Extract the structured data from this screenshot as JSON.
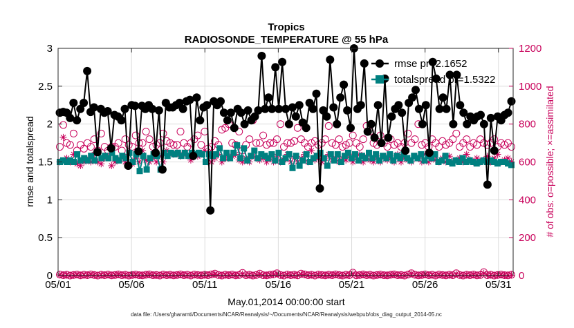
{
  "chart_data": {
    "type": "line",
    "title": "Tropics",
    "subtitle": "RADIOSONDE_TEMPERATURE @ 55 hPa",
    "xlabel": "May.01,2014 00:00:00 start",
    "ylabel_left": "rmse and totalspread",
    "ylabel_right": "# of obs: o=possible; ×=assimilated",
    "footnote": "data file: /Users/gharamti/Documents/NCAR/Reanalysis/~/Documents/NCAR/Reanalysis/webpub/obs_diag_output_2014-05.nc",
    "x_range_days": [
      1,
      32
    ],
    "x_ticks": [
      1,
      6,
      11,
      16,
      21,
      26,
      31
    ],
    "x_tick_labels": [
      "05/01",
      "05/06",
      "05/11",
      "05/16",
      "05/21",
      "05/26",
      "05/31"
    ],
    "ylim_left": [
      0,
      3
    ],
    "y_ticks_left": [
      0,
      0.5,
      1,
      1.5,
      2,
      2.5,
      3
    ],
    "y_tick_labels_left": [
      "0",
      "0.5",
      "1",
      "1.5",
      "2",
      "2.5",
      "3"
    ],
    "ylim_right": [
      0,
      1200
    ],
    "y_ticks_right": [
      0,
      200,
      400,
      600,
      800,
      1000,
      1200
    ],
    "y_tick_labels_right": [
      "0",
      "200",
      "400",
      "600",
      "800",
      "1000",
      "1200"
    ],
    "legend": [
      "rmse pr=2.1652",
      "totalspread pr=1.5322"
    ],
    "legend_position": "top-right",
    "colors": {
      "rmse": "#000000",
      "totalspread": "#008080",
      "obs": "#c8005a"
    },
    "series": [
      {
        "name": "rmse",
        "axis": "left",
        "values": [
          2.15,
          2.16,
          2.15,
          2.08,
          2.28,
          2.05,
          2.2,
          2.28,
          2.7,
          2.16,
          2.22,
          1.63,
          2.2,
          2.15,
          2.17,
          1.68,
          2.12,
          2.1,
          2.05,
          2.2,
          1.45,
          2.25,
          2.24,
          1.64,
          2.24,
          2.2,
          2.25,
          2.2,
          1.62,
          2.18,
          1.4,
          2.28,
          2.22,
          2.22,
          2.25,
          2.28,
          2.2,
          2.3,
          2.32,
          1.58,
          2.35,
          2.05,
          2.22,
          2.25,
          0.86,
          2.3,
          2.25,
          2.3,
          2.15,
          2.05,
          2.15,
          1.95,
          2.2,
          2.15,
          2.0,
          2.18,
          2.05,
          2.1,
          2.18,
          2.9,
          2.2,
          2.35,
          2.2,
          2.75,
          2.2,
          2.82,
          2.2,
          2.0,
          2.22,
          2.1,
          2.25,
          2.02,
          1.95,
          2.28,
          2.2,
          2.4,
          1.15,
          2.18,
          2.1,
          2.85,
          2.22,
          2.0,
          2.35,
          2.52,
          2.18,
          1.95,
          3.0,
          2.2,
          2.25,
          2.8,
          1.9,
          2.0,
          1.82,
          2.25,
          1.75,
          2.6,
          1.82,
          2.1,
          2.2,
          2.25,
          2.15,
          1.65,
          2.28,
          2.35,
          2.45,
          2.2,
          2.0,
          2.25,
          1.62,
          2.82,
          2.6,
          2.2,
          2.35,
          2.2,
          2.65,
          2.0,
          2.65,
          2.25,
          2.15,
          2.0,
          2.1,
          2.05,
          2.1,
          2.12,
          2.0,
          1.2,
          2.08,
          1.65,
          2.1,
          2.05,
          2.12,
          2.15,
          2.3
        ]
      },
      {
        "name": "totalspread",
        "axis": "left",
        "values": [
          1.5,
          1.52,
          1.5,
          1.52,
          1.5,
          1.6,
          1.52,
          1.55,
          1.52,
          1.58,
          1.52,
          1.62,
          1.55,
          1.58,
          1.55,
          1.62,
          1.55,
          1.52,
          1.58,
          1.55,
          1.62,
          1.5,
          1.6,
          1.38,
          1.58,
          1.4,
          1.55,
          1.6,
          1.58,
          1.4,
          1.62,
          1.58,
          1.62,
          1.6,
          1.62,
          1.58,
          1.62,
          1.58,
          1.62,
          1.6,
          1.62,
          1.6,
          1.5,
          1.6,
          1.58,
          1.6,
          1.68,
          1.55,
          1.62,
          1.55,
          1.62,
          1.72,
          1.55,
          1.68,
          1.52,
          1.58,
          1.65,
          1.55,
          1.6,
          1.58,
          1.55,
          1.6,
          1.52,
          1.62,
          1.5,
          1.55,
          1.6,
          1.42,
          1.58,
          1.45,
          1.52,
          1.6,
          1.5,
          1.55,
          1.58,
          1.62,
          1.55,
          1.45,
          1.6,
          1.52,
          1.6,
          1.5,
          1.58,
          1.62,
          1.55,
          1.6,
          1.52,
          1.58,
          1.55,
          1.62,
          1.55,
          1.6,
          1.52,
          1.58,
          1.55,
          1.6,
          1.52,
          1.58,
          1.55,
          1.6,
          1.55,
          1.52,
          1.58,
          1.55,
          1.6,
          1.52,
          1.58,
          1.55,
          1.6,
          1.5,
          1.52,
          1.58,
          1.5,
          1.48,
          1.52,
          1.5,
          1.55,
          1.5,
          1.52,
          1.5,
          1.48,
          1.5,
          1.52,
          1.5,
          1.52,
          1.5,
          1.48,
          1.5,
          1.5,
          1.48,
          1.46
        ]
      },
      {
        "name": "obs_possible",
        "axis": "right",
        "values": [
          680,
          795,
          700,
          690,
          750,
          660,
          690,
          670,
          700,
          680,
          720,
          660,
          750,
          680,
          660,
          680,
          680,
          700,
          660,
          720,
          690,
          680,
          740,
          700,
          700,
          760,
          720,
          680,
          690,
          700,
          750,
          710,
          700,
          690,
          690,
          760,
          700,
          680,
          700,
          720,
          740,
          690,
          760,
          670,
          680,
          710,
          690,
          770,
          780,
          800,
          700,
          690,
          760,
          660,
          690,
          720,
          820,
          700,
          700,
          740,
          690,
          700,
          700,
          720,
          800,
          680,
          700,
          700,
          710,
          780,
          720,
          700,
          680,
          700,
          710,
          690,
          700,
          720,
          790,
          700,
          690,
          720,
          680,
          690,
          700,
          740,
          700,
          680,
          720,
          790,
          760,
          700,
          690,
          740,
          700,
          680,
          720,
          690,
          700,
          680,
          700,
          750,
          700,
          720,
          800,
          690,
          700,
          680,
          720,
          700,
          680,
          710,
          690,
          700,
          720,
          750,
          680,
          700,
          720,
          680,
          700,
          690,
          720,
          700,
          690,
          700,
          720,
          680,
          700,
          690,
          700,
          680
        ]
      },
      {
        "name": "obs_assimilated",
        "axis": "right",
        "values": [
          600,
          730,
          620,
          600,
          640,
          590,
          580,
          600,
          610,
          600,
          640,
          600,
          590,
          620,
          630,
          580,
          600,
          610,
          620,
          600,
          640,
          590,
          620,
          600,
          660,
          610,
          600,
          620,
          600,
          630,
          600,
          660,
          640,
          640,
          650,
          630,
          640,
          640,
          610,
          640,
          630,
          640,
          660,
          600,
          600,
          620,
          640,
          600,
          620,
          620,
          630,
          640,
          610,
          600,
          620,
          600,
          630,
          620,
          610,
          620,
          600,
          620,
          600,
          630,
          600,
          610,
          640,
          600,
          620,
          600,
          620,
          640,
          600,
          660,
          610,
          620,
          600,
          620,
          640,
          610,
          620,
          600,
          620,
          610,
          630,
          600,
          620,
          640,
          600,
          630,
          610,
          600,
          620,
          600,
          630,
          610,
          620,
          600,
          640,
          600,
          620,
          610,
          600,
          630,
          620,
          600,
          640,
          600,
          620,
          610,
          600,
          620,
          600,
          630,
          600,
          610,
          620,
          600,
          640,
          610,
          600,
          620,
          600,
          610,
          630,
          600,
          620,
          640,
          600,
          610,
          620,
          600
        ]
      },
      {
        "name": "obs_zero_possible",
        "axis": "right",
        "values": [
          5,
          2,
          4,
          0,
          3,
          5,
          1,
          4,
          2,
          6,
          3,
          0,
          4,
          2,
          5,
          1,
          3,
          6,
          2,
          4,
          0,
          3,
          5,
          2,
          1,
          4,
          6,
          2,
          3,
          0,
          5,
          2,
          4,
          1,
          3,
          6,
          2,
          4,
          0,
          5,
          3,
          1,
          4,
          2,
          6,
          10,
          3,
          0,
          4,
          2,
          5,
          1,
          3,
          14,
          2,
          4,
          0,
          3,
          10,
          2,
          1,
          4,
          6,
          12,
          3,
          0,
          5,
          2,
          4,
          1,
          10,
          6,
          2,
          4,
          0,
          5,
          3,
          1,
          4,
          2,
          6,
          3,
          0,
          4,
          2,
          15,
          1,
          3,
          6,
          2,
          4,
          0,
          3,
          5,
          2,
          1,
          4,
          6,
          2,
          3,
          0,
          5,
          12,
          4,
          1,
          3,
          6,
          2,
          4,
          0,
          5,
          3,
          1,
          4,
          2,
          12,
          3,
          0,
          4,
          2,
          5,
          1,
          3,
          18,
          2,
          4,
          0,
          3,
          5,
          2,
          1,
          4
        ]
      },
      {
        "name": "obs_zero_assimilated",
        "axis": "right",
        "values": [
          3,
          1,
          2,
          0,
          2,
          3,
          1,
          2,
          1,
          4,
          2,
          0,
          2,
          1,
          3,
          1,
          2,
          4,
          1,
          2,
          0,
          2,
          3,
          1,
          1,
          2,
          4,
          1,
          2,
          0,
          3,
          1,
          2,
          1,
          2,
          4,
          1,
          2,
          0,
          3,
          2,
          1,
          2,
          1,
          4,
          6,
          2,
          0,
          2,
          1,
          3,
          1,
          2,
          8,
          1,
          2,
          0,
          2,
          6,
          1,
          1,
          2,
          4,
          8,
          2,
          0,
          3,
          1,
          2,
          1,
          6,
          4,
          1,
          2,
          0,
          3,
          2,
          1,
          2,
          1,
          4,
          2,
          0,
          2,
          1,
          10,
          1,
          2,
          4,
          1,
          2,
          0,
          2,
          3,
          1,
          1,
          2,
          4,
          1,
          2,
          0,
          3,
          8,
          2,
          1,
          2,
          4,
          1,
          2,
          0,
          3,
          2,
          1,
          2,
          1,
          8,
          2,
          0,
          2,
          1,
          3,
          1,
          2,
          12,
          1,
          2,
          0,
          2,
          3,
          1,
          1,
          2
        ]
      }
    ]
  }
}
